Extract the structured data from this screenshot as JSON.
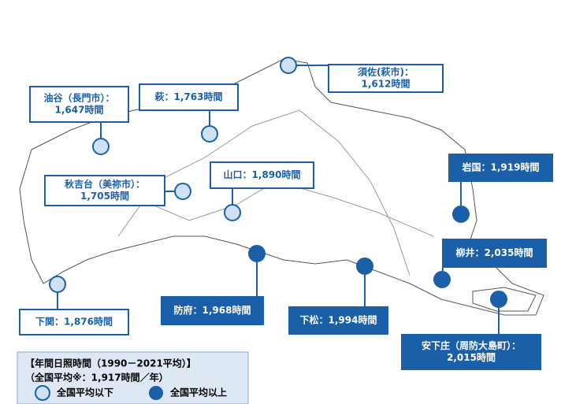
{
  "stations": [
    {
      "lines": [
        "須佐(萩市)：",
        "1,612時間"
      ],
      "level": "below"
    },
    {
      "lines": [
        "萩：1,763時間"
      ],
      "level": "below"
    },
    {
      "lines": [
        "油谷（長門市）：",
        "1,647時間"
      ],
      "level": "below"
    },
    {
      "lines": [
        "秋吉台（美祢市）：",
        "1,705時間"
      ],
      "level": "below"
    },
    {
      "lines": [
        "山口：1,890時間"
      ],
      "level": "below"
    },
    {
      "lines": [
        "下関：1,876時間"
      ],
      "level": "below"
    },
    {
      "lines": [
        "防府：1,968時間"
      ],
      "level": "above"
    },
    {
      "lines": [
        "下松：1,994時間"
      ],
      "level": "above"
    },
    {
      "lines": [
        "岩国：1,919時間"
      ],
      "level": "above"
    },
    {
      "lines": [
        "柳井：2,035時間"
      ],
      "level": "above"
    },
    {
      "lines": [
        "安下庄（周防大島町）：",
        "2,015時間"
      ],
      "level": "above"
    }
  ],
  "legend": {
    "title": "【年間日照時間（1990－2021平均）】",
    "subtitle": "（全国平均※：1,917時間／年）",
    "below": "全国平均以下",
    "above": "全国平均以上"
  }
}
